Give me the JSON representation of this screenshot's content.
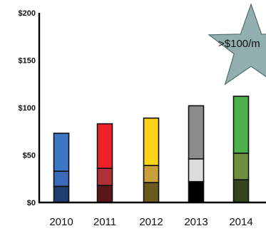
{
  "chart_data": {
    "type": "bar",
    "stacked": true,
    "categories": [
      "2010",
      "2011",
      "2012",
      "2013",
      "2014"
    ],
    "segments": [
      {
        "values": [
          17,
          18,
          21,
          22,
          24
        ],
        "colors": [
          "#1f3f6e",
          "#5c1518",
          "#6a5a1e",
          "#000000",
          "#34441c"
        ]
      },
      {
        "values": [
          16,
          18,
          18,
          24,
          28
        ],
        "colors": [
          "#3a6ab7",
          "#b0303a",
          "#caa03a",
          "#dcdcdc",
          "#6f8f3c"
        ]
      },
      {
        "values": [
          40,
          47,
          50,
          56,
          60
        ],
        "colors": [
          "#3d77c3",
          "#ee2028",
          "#ffd21a",
          "#8c8c8c",
          "#4cb04c"
        ]
      }
    ],
    "ylim": [
      0,
      200
    ],
    "yticks": [
      "$0",
      "$50",
      "$100",
      "$150",
      "$200"
    ],
    "ytick_values": [
      0,
      50,
      100,
      150,
      200
    ],
    "annotation": {
      "text": ">$100/m",
      "shape": "star",
      "color": "#8cabab"
    }
  }
}
